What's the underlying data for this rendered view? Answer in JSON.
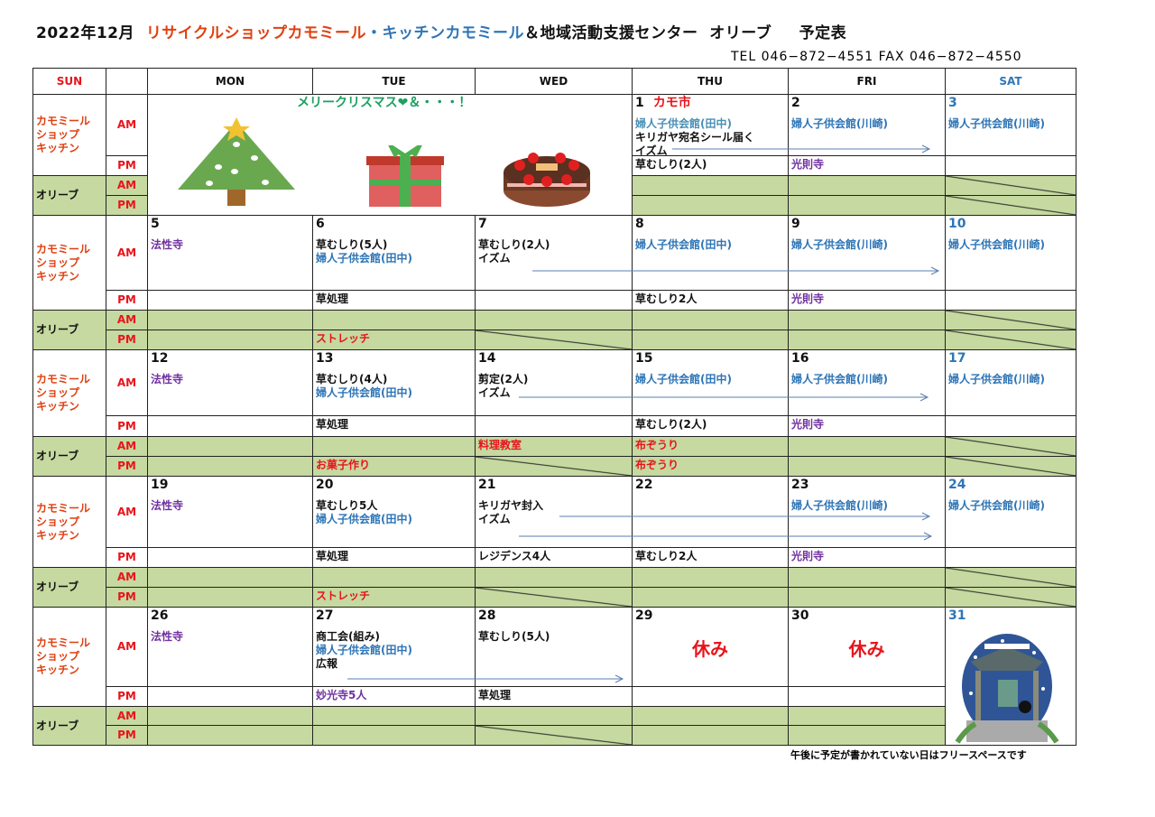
{
  "header": {
    "title_parts": [
      {
        "t": "2022年12月  ",
        "c": "k"
      },
      {
        "t": "リサイクルショップカモミール",
        "c": "o"
      },
      {
        "t": "・キッチンカモミール",
        "c": "b"
      },
      {
        "t": "＆地域活動支援センター  オリーブ　  予定表",
        "c": "k"
      }
    ],
    "contact": "TEL  046−872−4551      FAX  046−872−4550"
  },
  "weekdays": [
    {
      "t": "SUN",
      "c": "r"
    },
    {
      "t": "",
      "c": "k"
    },
    {
      "t": "MON",
      "c": "k"
    },
    {
      "t": "TUE",
      "c": "k"
    },
    {
      "t": "WED",
      "c": "k"
    },
    {
      "t": "THU",
      "c": "k"
    },
    {
      "t": "FRI",
      "c": "k"
    },
    {
      "t": "SAT",
      "c": "b"
    }
  ],
  "row_labels": {
    "shop": "カモミール\nショップ\nキッチン",
    "olive": "オリーブ",
    "am": "AM",
    "pm": "PM"
  },
  "xmas_banner": "メリークリスマス❤＆・・・！",
  "footnote": "午後に予定が書かれていない日はフリースペースです",
  "colors": {
    "olive_bg": "#c5d9a0",
    "red": "#e8141b",
    "blue": "#2e75b6",
    "purple": "#7030a0"
  },
  "weeks": [
    {
      "days": [
        null,
        null,
        null,
        {
          "date": "1",
          "note": "カモ市",
          "am": [
            {
              "t": "婦人子供会館(田中)",
              "c": "l"
            },
            {
              "t": "キリガヤ宛名シール届く",
              "c": "k"
            },
            {
              "t": "イズム",
              "c": "k"
            }
          ],
          "pm": [
            {
              "t": "草むしり(2人)",
              "c": "k"
            }
          ],
          "oam": [],
          "opm": []
        },
        {
          "date": "2",
          "am": [
            {
              "t": "婦人子供会館(川崎)",
              "c": "b"
            }
          ],
          "pm": [
            {
              "t": "光則寺",
              "c": "p"
            }
          ],
          "oam": [],
          "opm": []
        },
        {
          "date": "3",
          "dc": "b",
          "am": [
            {
              "t": "婦人子供会館(川崎)",
              "c": "b"
            }
          ],
          "pm": [],
          "oam": [],
          "opm": [],
          "diag_am": true,
          "diag_pm": true
        }
      ]
    },
    {
      "days": [
        {
          "date": "5",
          "am": [
            {
              "t": "法性寺",
              "c": "p"
            }
          ],
          "pm": [],
          "oam": [],
          "opm": []
        },
        {
          "date": "6",
          "am": [
            {
              "t": "草むしり(5人)",
              "c": "k"
            },
            {
              "t": "婦人子供会館(田中)",
              "c": "b"
            }
          ],
          "pm": [
            {
              "t": "草処理",
              "c": "k"
            }
          ],
          "oam": [],
          "opm": [
            {
              "t": "ストレッチ",
              "c": "r"
            }
          ]
        },
        {
          "date": "7",
          "am": [
            {
              "t": "草むしり(2人)",
              "c": "k"
            },
            {
              "t": "イズム",
              "c": "k"
            }
          ],
          "pm": [],
          "oam": [],
          "opm": [],
          "diag_pm": true
        },
        {
          "date": "8",
          "am": [
            {
              "t": "婦人子供会館(田中)",
              "c": "b"
            }
          ],
          "pm": [
            {
              "t": "草むしり2人",
              "c": "k"
            }
          ],
          "oam": [],
          "opm": []
        },
        {
          "date": "9",
          "am": [
            {
              "t": "婦人子供会館(川崎)",
              "c": "b"
            }
          ],
          "pm": [
            {
              "t": "光則寺",
              "c": "p"
            }
          ],
          "oam": [],
          "opm": []
        },
        {
          "date": "10",
          "dc": "b",
          "am": [
            {
              "t": "婦人子供会館(川崎)",
              "c": "b"
            }
          ],
          "pm": [],
          "oam": [],
          "opm": [],
          "diag_am": true,
          "diag_pm": true
        }
      ]
    },
    {
      "days": [
        {
          "date": "12",
          "am": [
            {
              "t": "法性寺",
              "c": "p"
            }
          ],
          "pm": [],
          "oam": [],
          "opm": []
        },
        {
          "date": "13",
          "am": [
            {
              "t": "草むしり(4人)",
              "c": "k"
            },
            {
              "t": "婦人子供会館(田中)",
              "c": "b"
            }
          ],
          "pm": [
            {
              "t": "草処理",
              "c": "k"
            }
          ],
          "oam": [],
          "opm": [
            {
              "t": "お菓子作り",
              "c": "r"
            }
          ]
        },
        {
          "date": "14",
          "am": [
            {
              "t": "剪定(2人)",
              "c": "k"
            },
            {
              "t": "イズム",
              "c": "k"
            }
          ],
          "pm": [],
          "oam": [
            {
              "t": "料理教室",
              "c": "r"
            }
          ],
          "opm": [],
          "diag_pm": true
        },
        {
          "date": "15",
          "am": [
            {
              "t": "婦人子供会館(田中)",
              "c": "b"
            }
          ],
          "pm": [
            {
              "t": "草むしり(2人)",
              "c": "k"
            }
          ],
          "oam": [
            {
              "t": "布ぞうり",
              "c": "r"
            }
          ],
          "opm": [
            {
              "t": "布ぞうり",
              "c": "r"
            }
          ]
        },
        {
          "date": "16",
          "am": [
            {
              "t": "婦人子供会館(川崎)",
              "c": "b"
            }
          ],
          "pm": [
            {
              "t": "光則寺",
              "c": "p"
            }
          ],
          "oam": [],
          "opm": []
        },
        {
          "date": "17",
          "dc": "b",
          "am": [
            {
              "t": "婦人子供会館(川崎)",
              "c": "b"
            }
          ],
          "pm": [],
          "oam": [],
          "opm": [],
          "diag_am": true,
          "diag_pm": true
        }
      ]
    },
    {
      "days": [
        {
          "date": "19",
          "am": [
            {
              "t": "法性寺",
              "c": "p"
            }
          ],
          "pm": [],
          "oam": [],
          "opm": []
        },
        {
          "date": "20",
          "am": [
            {
              "t": "草むしり5人",
              "c": "k"
            },
            {
              "t": "婦人子供会館(田中)",
              "c": "b"
            }
          ],
          "pm": [
            {
              "t": "草処理",
              "c": "k"
            }
          ],
          "oam": [],
          "opm": [
            {
              "t": "ストレッチ",
              "c": "r"
            }
          ]
        },
        {
          "date": "21",
          "am": [
            {
              "t": "キリガヤ封入",
              "c": "k"
            },
            {
              "t": "イズム",
              "c": "k"
            }
          ],
          "pm": [
            {
              "t": "レジデンス4人",
              "c": "k"
            }
          ],
          "oam": [],
          "opm": [],
          "diag_pm": true
        },
        {
          "date": "22",
          "am": [],
          "pm": [
            {
              "t": "草むしり2人",
              "c": "k"
            }
          ],
          "oam": [],
          "opm": []
        },
        {
          "date": "23",
          "am": [
            {
              "t": "婦人子供会館(川崎)",
              "c": "b"
            }
          ],
          "pm": [
            {
              "t": "光則寺",
              "c": "p"
            }
          ],
          "oam": [],
          "opm": []
        },
        {
          "date": "24",
          "dc": "b",
          "am": [
            {
              "t": "婦人子供会館(川崎)",
              "c": "b"
            }
          ],
          "pm": [],
          "oam": [],
          "opm": [],
          "diag_am": true,
          "diag_pm": true
        }
      ]
    },
    {
      "days": [
        {
          "date": "26",
          "am": [
            {
              "t": "法性寺",
              "c": "p"
            }
          ],
          "pm": [],
          "oam": [],
          "opm": []
        },
        {
          "date": "27",
          "am": [
            {
              "t": "商工会(組み)",
              "c": "k"
            },
            {
              "t": "婦人子供会館(田中)",
              "c": "b"
            },
            {
              "t": "広報",
              "c": "k"
            }
          ],
          "pm": [
            {
              "t": "妙光寺5人",
              "c": "p"
            }
          ],
          "oam": [],
          "opm": []
        },
        {
          "date": "28",
          "am": [
            {
              "t": "草むしり(5人)",
              "c": "k"
            }
          ],
          "pm": [
            {
              "t": "草処理",
              "c": "k"
            }
          ],
          "oam": [],
          "opm": [],
          "diag_pm": true
        },
        {
          "date": "29",
          "big": "休み",
          "am": [],
          "pm": [],
          "oam": [],
          "opm": []
        },
        {
          "date": "30",
          "big": "休み",
          "am": [],
          "pm": [],
          "oam": [],
          "opm": []
        },
        {
          "date": "31",
          "dc": "b",
          "image": "temple-bell",
          "am": [],
          "pm": [],
          "oam": [],
          "opm": []
        }
      ]
    }
  ]
}
